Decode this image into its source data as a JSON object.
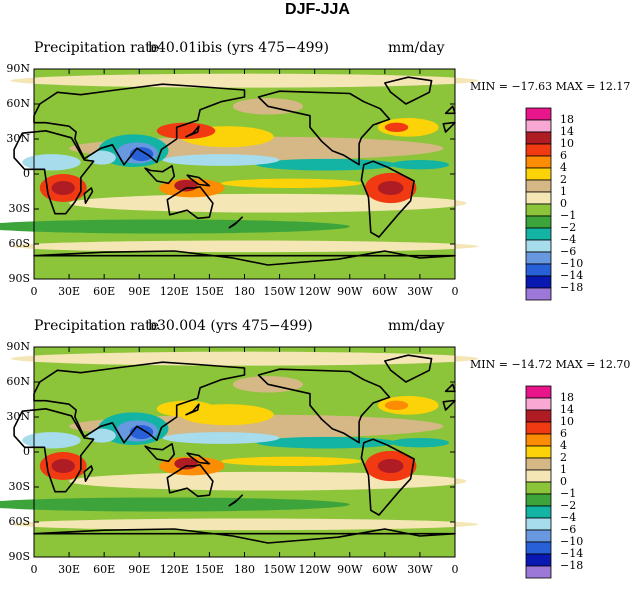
{
  "figure": {
    "title": "DJF-JJA"
  },
  "colorbar": {
    "levels": [
      "18",
      "14",
      "10",
      "6",
      "4",
      "2",
      "1",
      "0",
      "−1",
      "−2",
      "−4",
      "−6",
      "−10",
      "−14",
      "−18"
    ],
    "colors": [
      "#e8168a",
      "#f8a8d2",
      "#b01c24",
      "#f23a12",
      "#fc8c04",
      "#fcd208",
      "#d6b886",
      "#f5e6b6",
      "#8cc43a",
      "#3ca43a",
      "#14b4a4",
      "#a6dcec",
      "#6898e0",
      "#2860d8",
      "#0818b0",
      "#9c78d8"
    ]
  },
  "chart_data": [
    {
      "type": "contour-map",
      "title": "Precipitation rate",
      "case": "b40.01ibis (yrs 475−499)",
      "units": "mm/day",
      "min_label": "MIN = −17.63",
      "max_label": "MAX =   12.17",
      "min": -17.63,
      "max": 12.17,
      "lat_ticks": [
        "90N",
        "60N",
        "30N",
        "0",
        "30S",
        "60S",
        "90S"
      ],
      "lon_ticks": [
        "0",
        "30E",
        "60E",
        "90E",
        "120E",
        "150E",
        "180",
        "150W",
        "120W",
        "90W",
        "60W",
        "30W",
        "0"
      ],
      "lat_range": [
        -90,
        90
      ],
      "lon_range": [
        0,
        360
      ]
    },
    {
      "type": "contour-map",
      "title": "Precipitation rate",
      "case": "b30.004 (yrs 475−499)",
      "units": "mm/day",
      "min_label": "MIN = −14.72",
      "max_label": "MAX =   12.70",
      "min": -14.72,
      "max": 12.7,
      "lat_ticks": [
        "90N",
        "60N",
        "30N",
        "0",
        "30S",
        "60S",
        "90S"
      ],
      "lon_ticks": [
        "0",
        "30E",
        "60E",
        "90E",
        "120E",
        "150E",
        "180",
        "150W",
        "120W",
        "90W",
        "60W",
        "30W",
        "0"
      ],
      "lat_range": [
        -90,
        90
      ],
      "lon_range": [
        0,
        360
      ]
    }
  ]
}
